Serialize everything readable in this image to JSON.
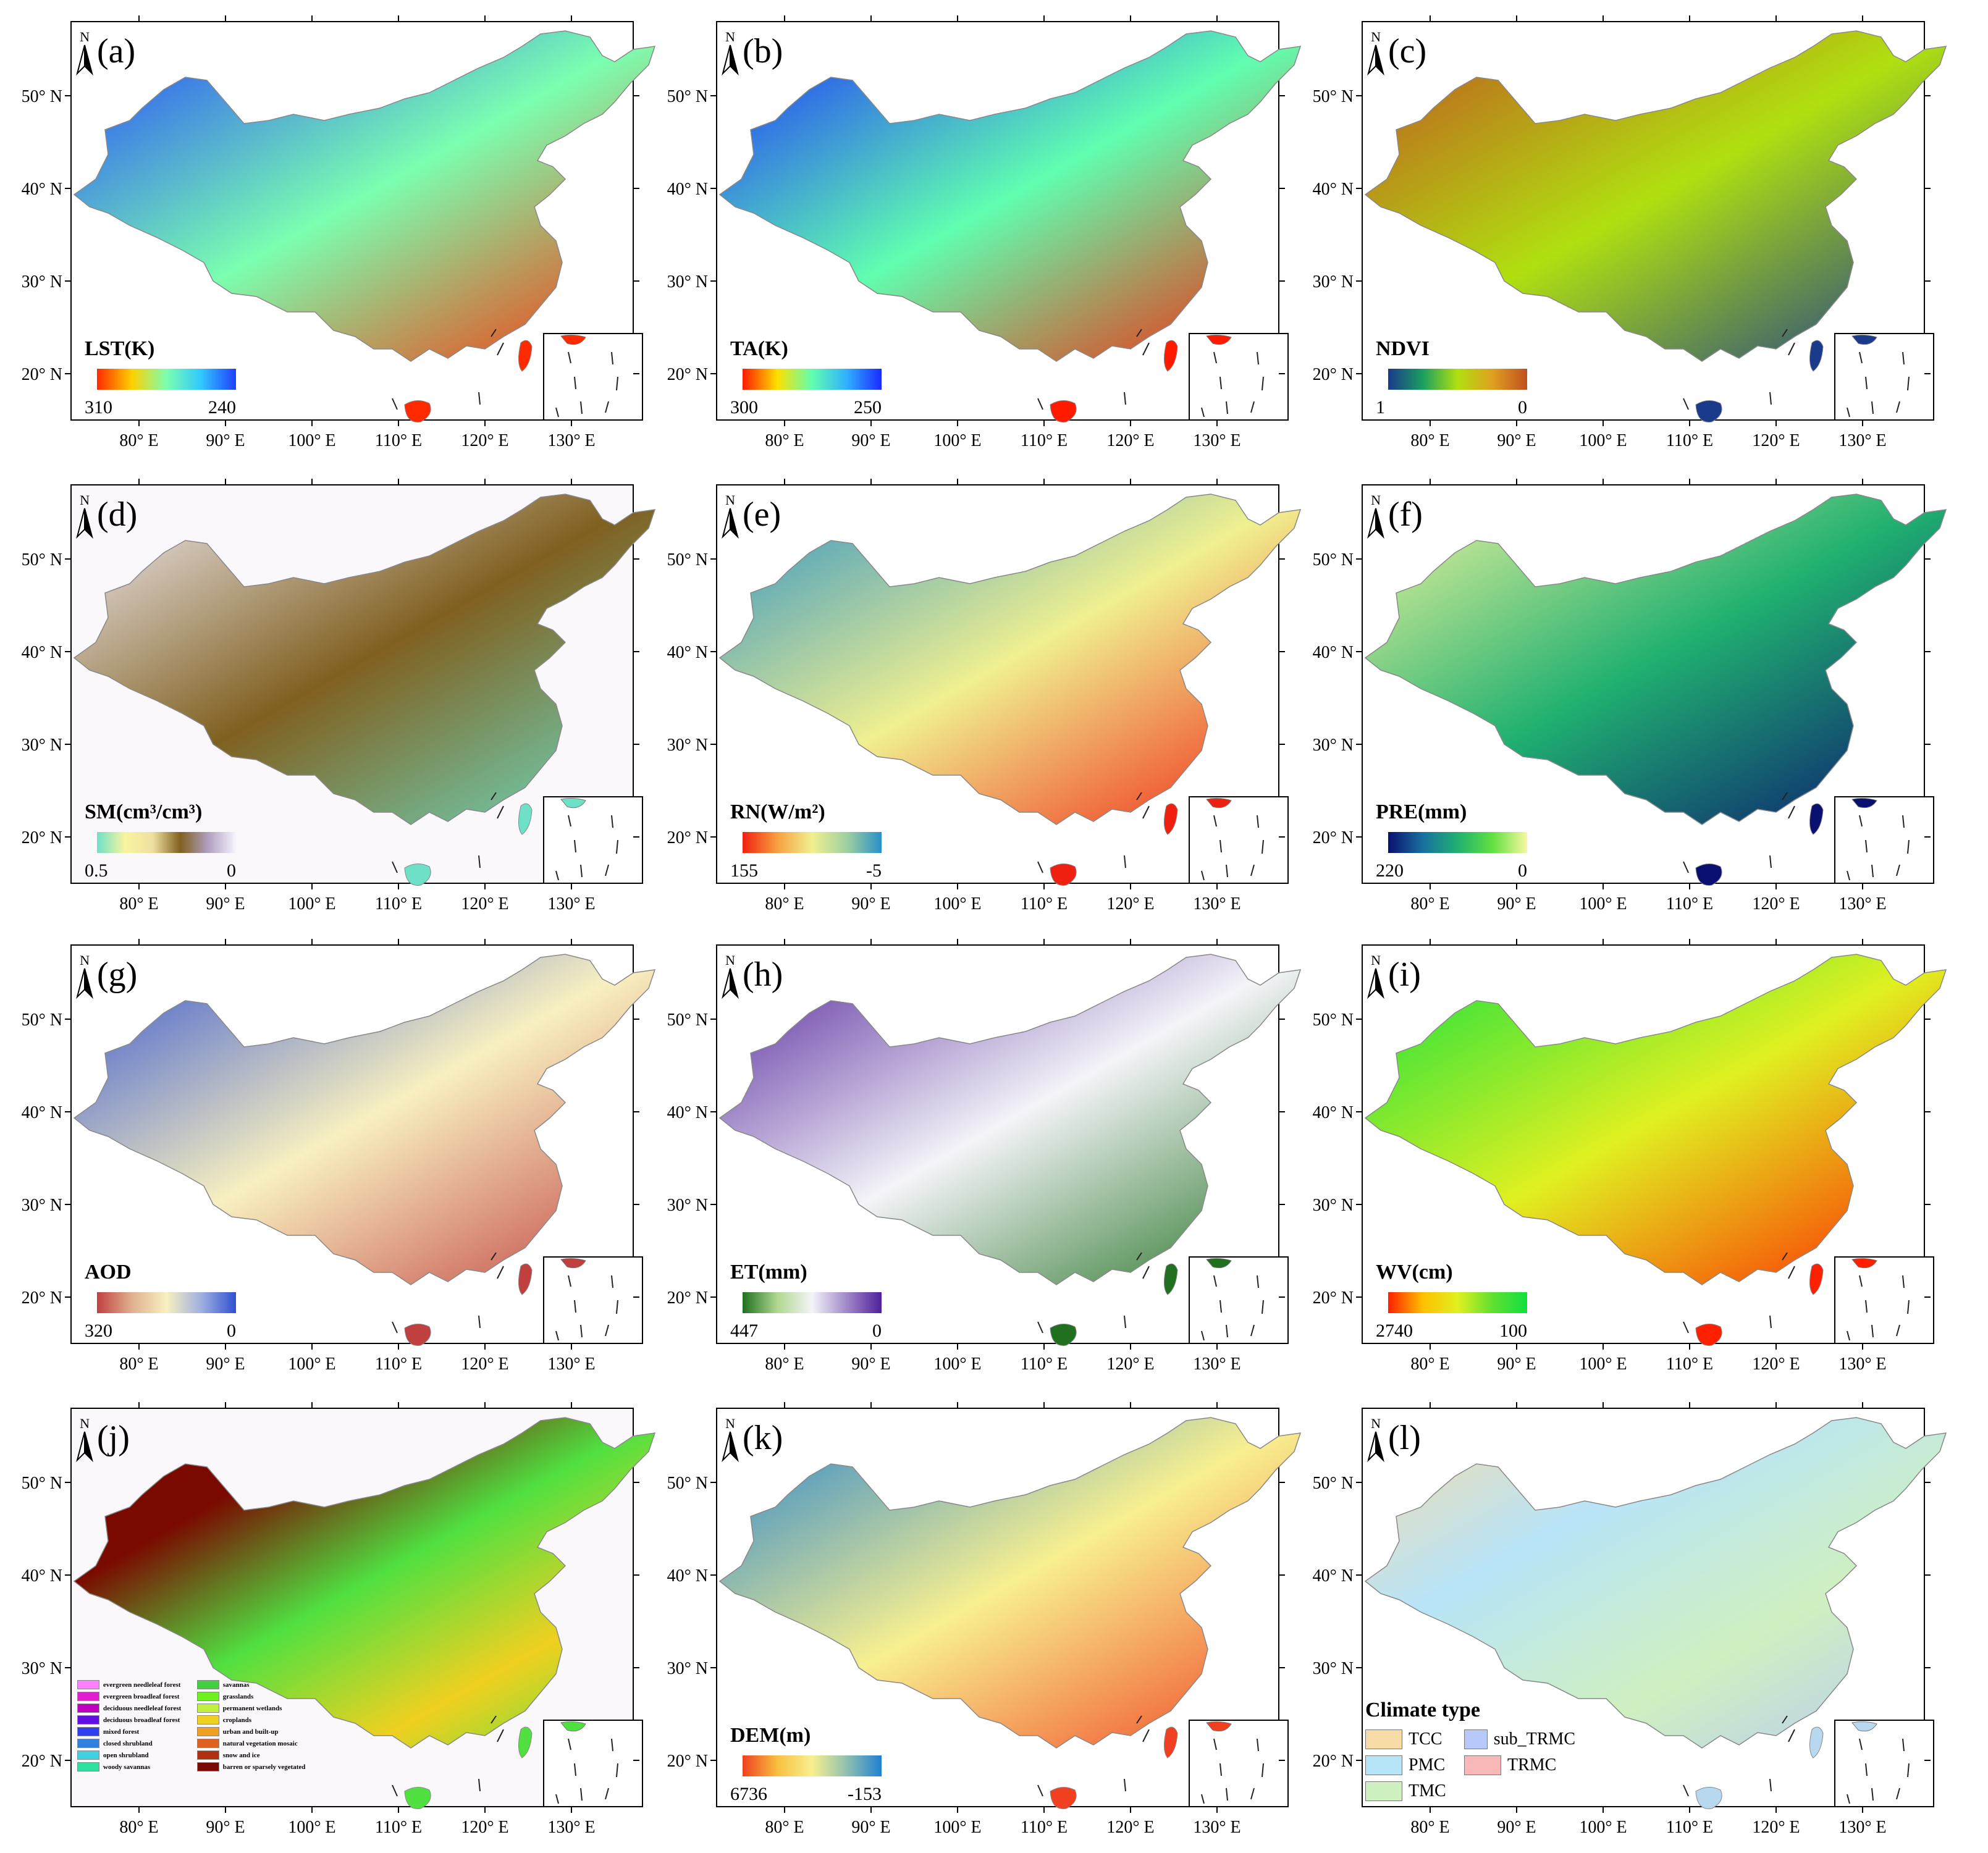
{
  "figure": {
    "lat_labels": [
      "50° N",
      "40° N",
      "30° N",
      "20° N"
    ],
    "lon_labels": [
      "80° E",
      "90° E",
      "100° E",
      "110° E",
      "120° E",
      "130° E"
    ],
    "north_arrow": "N",
    "panels": [
      {
        "id": "a",
        "label": "(a)",
        "title": "LST(K)",
        "min_label": "310",
        "max_label": "240",
        "colors": [
          "#ff2a00",
          "#ffd000",
          "#7bffb0",
          "#30c8ff",
          "#2040ff"
        ],
        "fill": "#f7c24a"
      },
      {
        "id": "b",
        "label": "(b)",
        "title": "TA(K)",
        "min_label": "300",
        "max_label": "250",
        "colors": [
          "#ff1a00",
          "#ffe000",
          "#60ffb0",
          "#30b0ff",
          "#1a2aff"
        ],
        "fill": "#f9b240"
      },
      {
        "id": "c",
        "label": "(c)",
        "title": "NDVI",
        "min_label": "1",
        "max_label": "0",
        "colors": [
          "#1a3a8c",
          "#1aa060",
          "#b0e010",
          "#e0a020",
          "#c05020"
        ],
        "fill": "#b8762a"
      },
      {
        "id": "d",
        "label": "(d)",
        "title": "SM(cm³/cm³)",
        "min_label": "0.5",
        "max_label": "0",
        "colors": [
          "#6ee0c8",
          "#f8f4a0",
          "#f0e0a0",
          "#806020",
          "#b0a0c0",
          "#f8f4ff"
        ],
        "fill": "#a89070"
      },
      {
        "id": "e",
        "label": "(e)",
        "title": "RN(W/m²)",
        "min_label": "155",
        "max_label": "-5",
        "colors": [
          "#f02010",
          "#f8a040",
          "#f0f090",
          "#a0d0a0",
          "#2890c8"
        ],
        "fill": "#f0b060"
      },
      {
        "id": "f",
        "label": "(f)",
        "title": "PRE(mm)",
        "min_label": "220",
        "max_label": "0",
        "colors": [
          "#0a1070",
          "#1870a0",
          "#20b070",
          "#60e040",
          "#f8f8a0"
        ],
        "fill": "#80d060"
      },
      {
        "id": "g",
        "label": "(g)",
        "title": "AOD",
        "min_label": "320",
        "max_label": "0",
        "colors": [
          "#c04040",
          "#e0b090",
          "#f8f0c0",
          "#a0b0e0",
          "#3050d0"
        ],
        "fill": "#6f8fe0"
      },
      {
        "id": "h",
        "label": "(h)",
        "title": "ET(mm)",
        "min_label": "447",
        "max_label": "0",
        "colors": [
          "#207020",
          "#b0d890",
          "#f4f4f8",
          "#a088c8",
          "#50209a"
        ],
        "fill": "#8a64b8"
      },
      {
        "id": "i",
        "label": "(i)",
        "title": "WV(cm)",
        "min_label": "2740",
        "max_label": "100",
        "colors": [
          "#ff2000",
          "#ffc000",
          "#e0f020",
          "#60e030",
          "#10e040"
        ],
        "fill": "#70dc30"
      },
      {
        "id": "j",
        "label": "(j)",
        "fill": "#50e040",
        "legend": [
          {
            "name": "evergreen needleleaf forest",
            "color": "#ff80ff"
          },
          {
            "name": "evergreen broadleaf forest",
            "color": "#e020d0"
          },
          {
            "name": "deciduous needleleaf forest",
            "color": "#c000c0"
          },
          {
            "name": "deciduous broadleaf forest",
            "color": "#6010e0"
          },
          {
            "name": "mixed forest",
            "color": "#3040f0"
          },
          {
            "name": "closed shrubland",
            "color": "#3080e0"
          },
          {
            "name": "open shrubland",
            "color": "#40d0e0"
          },
          {
            "name": "woody savannas",
            "color": "#30e0a0"
          },
          {
            "name": "savannas",
            "color": "#40d040"
          },
          {
            "name": "grasslands",
            "color": "#70f020"
          },
          {
            "name": "permanent wetlands",
            "color": "#c0f040"
          },
          {
            "name": "croplands",
            "color": "#f0d020"
          },
          {
            "name": "urban and built-up",
            "color": "#f0a020"
          },
          {
            "name": "natural vegetation mosaic",
            "color": "#e06020"
          },
          {
            "name": "snow and ice",
            "color": "#b03010"
          },
          {
            "name": "barren or sparsely vegetated",
            "color": "#7a0a00"
          }
        ]
      },
      {
        "id": "k",
        "label": "(k)",
        "title": "DEM(m)",
        "min_label": "6736",
        "max_label": "-153",
        "colors": [
          "#f04020",
          "#f8c040",
          "#f8f090",
          "#90c0b0",
          "#2080d0"
        ],
        "fill": "#9ec0b4"
      },
      {
        "id": "l",
        "label": "(l)",
        "fill": "#b8d8f0",
        "legend_title": "Climate type",
        "legend": [
          {
            "name": "TCC",
            "color": "#f8dca8"
          },
          {
            "name": "sub_TRMC",
            "color": "#b8c8f8"
          },
          {
            "name": "PMC",
            "color": "#b8e4f8"
          },
          {
            "name": "TRMC",
            "color": "#f8b8b8"
          },
          {
            "name": "TMC",
            "color": "#cff0c0"
          }
        ]
      }
    ]
  }
}
